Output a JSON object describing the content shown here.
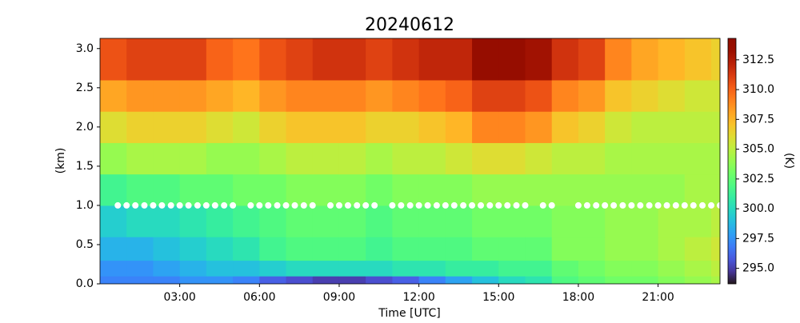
{
  "chart_data": {
    "type": "heatmap",
    "title": "20240612",
    "xlabel": "Time [UTC]",
    "ylabel": "(km)",
    "colorbar_label": "(K)",
    "colormap": "turbo",
    "x_edges": [
      0,
      1,
      2,
      3,
      4,
      5,
      6,
      7,
      8,
      9,
      10,
      11,
      12,
      13,
      14,
      15,
      16,
      17,
      18,
      19,
      20,
      21,
      22,
      23,
      24
    ],
    "y_edges": [
      0,
      0.1,
      0.3,
      0.6,
      1.0,
      1.4,
      1.8,
      2.2,
      2.6,
      3.13
    ],
    "values": [
      [
        297,
        297,
        297,
        297.5,
        297.5,
        297,
        296,
        295.5,
        295,
        295,
        295.5,
        296,
        297,
        298,
        299,
        300,
        300.5,
        302,
        302.5,
        303,
        303,
        303.5,
        304,
        304.5
      ],
      [
        297.5,
        297.5,
        298,
        298.5,
        299,
        299,
        299.5,
        300,
        300,
        300,
        300,
        300.5,
        300.5,
        301,
        301,
        301.5,
        301.5,
        302.5,
        303,
        303.5,
        303.5,
        304,
        304.5,
        305
      ],
      [
        298.5,
        298.5,
        299,
        299.5,
        300,
        300.5,
        301.5,
        302,
        302,
        302,
        301.5,
        302,
        302,
        302,
        302.5,
        302.5,
        302.5,
        303.5,
        303.5,
        304,
        304,
        304.5,
        305,
        305.5
      ],
      [
        299.5,
        300,
        300,
        300.5,
        301,
        301.5,
        302,
        302.5,
        302.5,
        302.5,
        302,
        302.5,
        302.5,
        302.5,
        303,
        303,
        303,
        303.5,
        303.5,
        304,
        304,
        304.5,
        304.5,
        305
      ],
      [
        301.5,
        302,
        302,
        302.5,
        302.5,
        303,
        303,
        303.5,
        303.5,
        303.5,
        303,
        303.5,
        303.5,
        303.5,
        304,
        304,
        304,
        304,
        304,
        304,
        304,
        304,
        304.5,
        304.5
      ],
      [
        304,
        304.5,
        304.5,
        304.5,
        304,
        304,
        304.5,
        305,
        305,
        305,
        304.5,
        305,
        305,
        305.5,
        306,
        306,
        305.5,
        305,
        305,
        304.5,
        304.5,
        304.5,
        304.5,
        304.5
      ],
      [
        306,
        306.5,
        306.5,
        306.5,
        306,
        305.5,
        306.5,
        307,
        307,
        307,
        306.5,
        306.5,
        307,
        307.5,
        309,
        309,
        308.5,
        307,
        306.5,
        305.5,
        305,
        305,
        305,
        305
      ],
      [
        308,
        308.5,
        308.5,
        308.5,
        308,
        307.5,
        308.5,
        309,
        309,
        309,
        308.5,
        309,
        309.5,
        310,
        311,
        311,
        310.5,
        309,
        308.5,
        307,
        306.5,
        306,
        305.5,
        305.5
      ],
      [
        310.5,
        311,
        311,
        311,
        310,
        309.5,
        310.5,
        311,
        311.5,
        311.5,
        311,
        311.5,
        312,
        312,
        313.5,
        313.5,
        313,
        311.5,
        311,
        309,
        308,
        307.5,
        307,
        306.5
      ]
    ],
    "markers": {
      "color": "#ffffff",
      "y": 1.0,
      "x": [
        0.67,
        1,
        1.33,
        1.67,
        2,
        2.33,
        2.67,
        3,
        3.33,
        3.67,
        4,
        4.33,
        4.67,
        5,
        5.67,
        6,
        6.33,
        6.67,
        7,
        7.33,
        7.67,
        8,
        8.67,
        9,
        9.33,
        9.67,
        10,
        10.33,
        11,
        11.33,
        11.67,
        12,
        12.33,
        12.67,
        13,
        13.33,
        13.67,
        14,
        14.33,
        14.67,
        15,
        15.33,
        15.67,
        16,
        16.67,
        17,
        18,
        18.33,
        18.67,
        19,
        19.33,
        19.67,
        20,
        20.33,
        20.67,
        21,
        21.33,
        21.67,
        22,
        22.33,
        22.67,
        23,
        23.33
      ]
    },
    "xlim": [
      0,
      23.33
    ],
    "ylim": [
      0,
      3.13
    ],
    "clim": [
      293.7,
      314.3
    ],
    "xticks": [
      {
        "value": 3,
        "label": "03:00"
      },
      {
        "value": 6,
        "label": "06:00"
      },
      {
        "value": 9,
        "label": "09:00"
      },
      {
        "value": 12,
        "label": "12:00"
      },
      {
        "value": 15,
        "label": "15:00"
      },
      {
        "value": 18,
        "label": "18:00"
      },
      {
        "value": 21,
        "label": "21:00"
      }
    ],
    "yticks": [
      {
        "value": 0,
        "label": "0.0"
      },
      0.5,
      {
        "value": 1,
        "label": "1.0"
      },
      1.5,
      {
        "value": 2,
        "label": "2.0"
      },
      2.5,
      {
        "value": 3,
        "label": "3.0"
      }
    ],
    "cticks": [
      {
        "value": 295,
        "label": "295.0"
      },
      297.5,
      {
        "value": 300,
        "label": "300.0"
      },
      302.5,
      {
        "value": 305,
        "label": "305.0"
      },
      307.5,
      {
        "value": 310,
        "label": "310.0"
      },
      312.5
    ]
  }
}
